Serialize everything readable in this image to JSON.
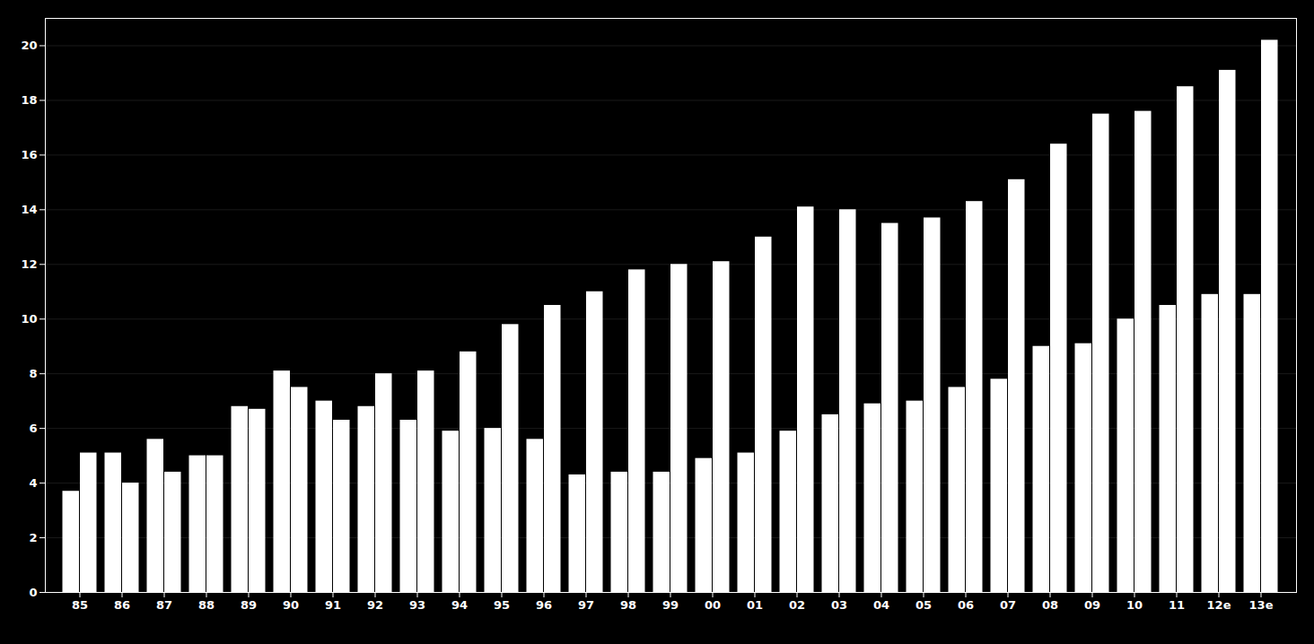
{
  "chart_data": {
    "type": "bar",
    "categories": [
      "85",
      "86",
      "87",
      "88",
      "89",
      "90",
      "91",
      "92",
      "93",
      "94",
      "95",
      "96",
      "97",
      "98",
      "99",
      "00",
      "01",
      "02",
      "03",
      "04",
      "05",
      "06",
      "07",
      "08",
      "09",
      "10",
      "11",
      "12e",
      "13e"
    ],
    "series": [
      {
        "color": "#ffffff",
        "values": [
          3.7,
          5.1,
          5.6,
          5.0,
          6.8,
          8.1,
          7.0,
          6.8,
          6.3,
          5.9,
          6.0,
          5.6,
          4.3,
          4.4,
          4.4,
          4.9,
          5.1,
          5.9,
          6.5,
          6.9,
          7.0,
          7.5,
          7.8,
          9.0,
          9.1,
          10.0,
          10.5,
          10.9,
          10.9
        ]
      },
      {
        "color": "#ffffff",
        "values": [
          5.1,
          4.0,
          4.4,
          5.0,
          6.7,
          7.5,
          6.3,
          8.0,
          8.1,
          8.8,
          9.8,
          10.5,
          11.0,
          11.8,
          12.0,
          12.1,
          13.0,
          14.1,
          14.0,
          13.5,
          13.7,
          14.3,
          15.1,
          16.4,
          17.5,
          17.6,
          18.5,
          19.1,
          20.2
        ]
      }
    ],
    "ylim": [
      0,
      21
    ],
    "yticks": [
      0,
      2,
      4,
      6,
      8,
      10,
      12,
      14,
      16,
      18,
      20
    ],
    "grid": true
  }
}
